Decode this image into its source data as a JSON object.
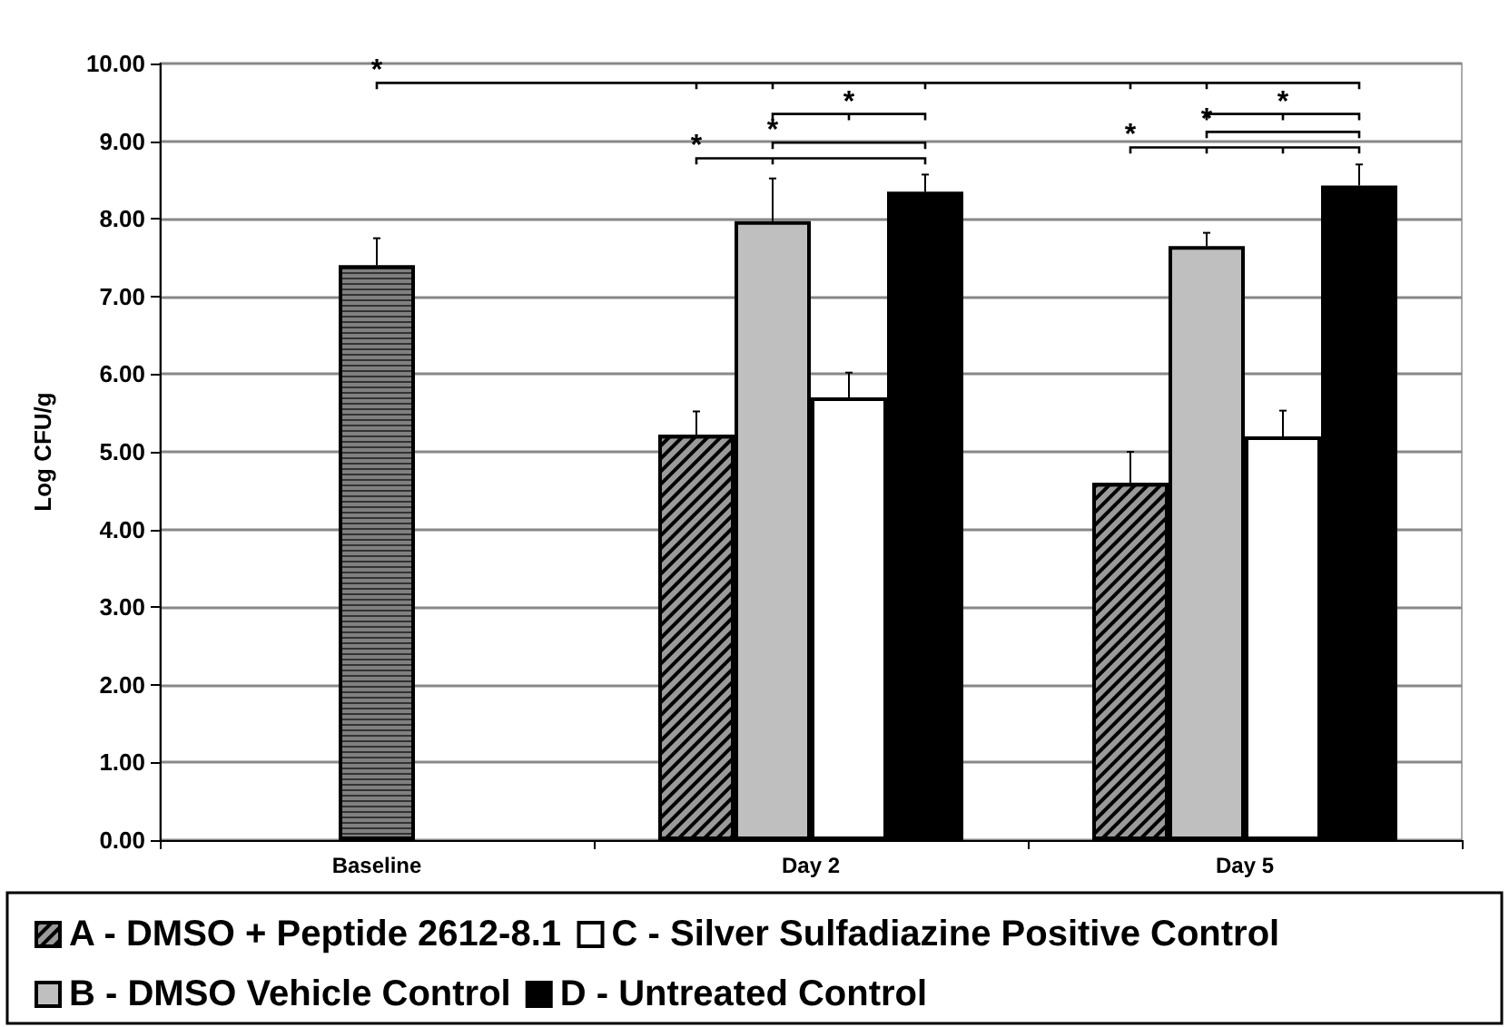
{
  "chart_data": {
    "type": "bar",
    "ylabel": "Log CFU/g",
    "categories": [
      "Baseline",
      "Day 2",
      "Day 5"
    ],
    "series": [
      {
        "color": "#808080",
        "values": [
          7.4,
          null,
          null
        ],
        "errors": [
          [
            7.4,
            7.75
          ],
          null,
          null
        ]
      },
      {
        "name": "A - DMSO + Peptide 2612-8.1",
        "color": "#9a9a9a",
        "values": [
          null,
          5.22,
          4.6
        ],
        "errors": [
          null,
          [
            5.22,
            5.52
          ],
          [
            4.6,
            5.0
          ]
        ]
      },
      {
        "name": "B - DMSO Vehicle Control",
        "color": "#bfbfbf",
        "values": [
          null,
          7.97,
          7.65
        ],
        "errors": [
          null,
          [
            7.97,
            8.52
          ],
          [
            7.65,
            7.82
          ]
        ]
      },
      {
        "name": "C - Silver Sulfadiazine Positive Control",
        "color": "#ffffff",
        "values": [
          null,
          5.7,
          5.2
        ],
        "errors": [
          null,
          [
            5.7,
            6.02
          ],
          [
            5.2,
            5.53
          ]
        ]
      },
      {
        "name": "D - Untreated Control",
        "color": "#000000",
        "values": [
          null,
          8.35,
          8.43
        ],
        "errors": [
          null,
          [
            8.35,
            8.57
          ],
          [
            8.43,
            8.7
          ]
        ]
      }
    ],
    "ylim": [
      0,
      10
    ],
    "yticks": [
      {
        "value": 0,
        "label": "0.00"
      },
      {
        "value": 1,
        "label": "1.00"
      },
      {
        "value": 2,
        "label": "2.00"
      },
      {
        "value": 3,
        "label": "3.00"
      },
      {
        "value": 4,
        "label": "4.00"
      },
      {
        "value": 5,
        "label": "5.00"
      },
      {
        "value": 6,
        "label": "6.00"
      },
      {
        "value": 7,
        "label": "7.00"
      },
      {
        "value": 8,
        "label": "8.00"
      },
      {
        "value": 9,
        "label": "9.00"
      },
      {
        "value": 10,
        "label": "10.00"
      }
    ],
    "grid": "y",
    "legend": "bottom",
    "annotations": [
      "*",
      "*",
      "*",
      "*",
      "*",
      "*",
      "*"
    ]
  }
}
